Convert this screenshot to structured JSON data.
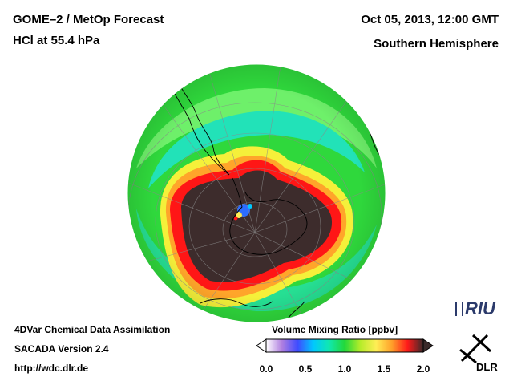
{
  "header": {
    "title_line1": "GOME–2 / MetOp Forecast",
    "title_line2": "HCl at 55.4 hPa",
    "datetime": "Oct 05, 2013, 12:00 GMT",
    "region": "Southern Hemisphere"
  },
  "footer": {
    "line1": "4DVar Chemical Data Assimilation",
    "line2": "SACADA Version 2.4",
    "line3": "http://wdc.dlr.de"
  },
  "colorbar": {
    "title": "Volume Mixing Ratio [ppbv]",
    "ticks": [
      "0.0",
      "0.5",
      "1.0",
      "1.5",
      "2.0"
    ],
    "tick_values": [
      0.0,
      0.5,
      1.0,
      1.5,
      2.0
    ],
    "range": [
      0.0,
      2.0
    ],
    "stops": [
      {
        "value": 0.0,
        "color": "#ffffff"
      },
      {
        "value": 0.2,
        "color": "#b07fe0"
      },
      {
        "value": 0.4,
        "color": "#3f4bff"
      },
      {
        "value": 0.6,
        "color": "#00c8ff"
      },
      {
        "value": 0.8,
        "color": "#10e8b0"
      },
      {
        "value": 1.0,
        "color": "#22d83a"
      },
      {
        "value": 1.2,
        "color": "#b6ec2a"
      },
      {
        "value": 1.4,
        "color": "#ffee55"
      },
      {
        "value": 1.6,
        "color": "#ffa02a"
      },
      {
        "value": 1.8,
        "color": "#ff1a1a"
      },
      {
        "value": 2.0,
        "color": "#3a2a2a"
      }
    ]
  },
  "logos": {
    "riu": "RIU",
    "dlr": "DLR"
  },
  "map": {
    "ring_colors": {
      "outer_green": "#2fd83c",
      "cyan_band": "#22e2b8",
      "yellow": "#f5f03a",
      "orange": "#ffa52a",
      "red": "#ff1616",
      "vortex": "#3d2c2c"
    }
  }
}
